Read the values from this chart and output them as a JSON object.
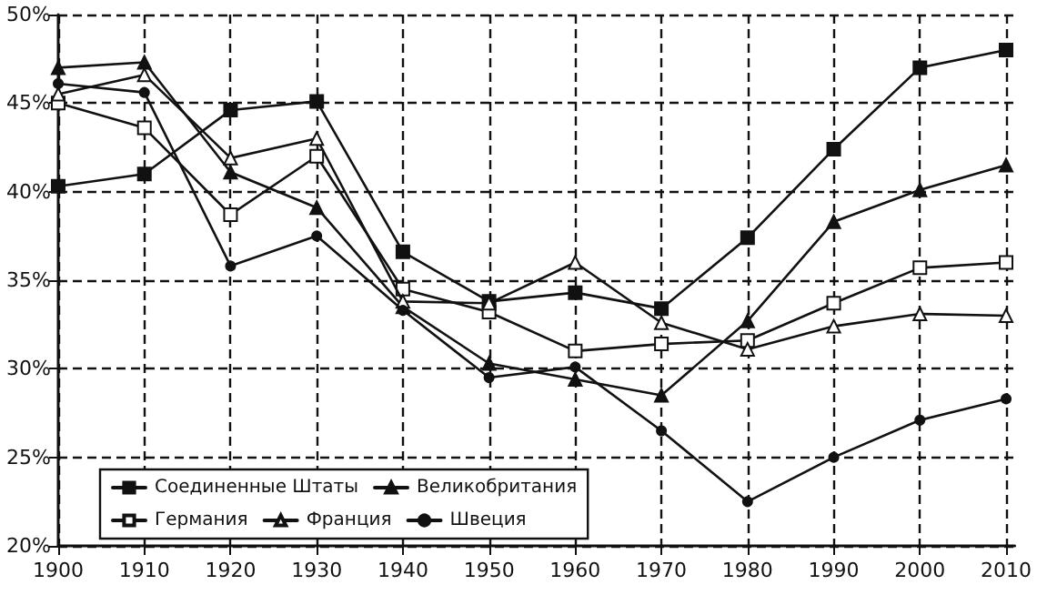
{
  "chart_data": {
    "type": "line",
    "x": [
      1900,
      1910,
      1920,
      1930,
      1940,
      1950,
      1960,
      1970,
      1980,
      1990,
      2000,
      2010
    ],
    "series": [
      {
        "name": "Соединенные Штаты",
        "color": "#111111",
        "marker": "square",
        "values": [
          40.3,
          41.0,
          44.6,
          45.1,
          36.6,
          33.8,
          34.3,
          33.4,
          37.4,
          42.4,
          47.0,
          48.0
        ]
      },
      {
        "name": "Великобритания",
        "color": "#111111",
        "marker": "triangle",
        "values": [
          47.0,
          47.3,
          41.1,
          39.1,
          33.5,
          30.3,
          29.4,
          28.5,
          32.7,
          38.3,
          40.1,
          41.5
        ]
      },
      {
        "name": "Германия",
        "color": "#ffffff",
        "marker": "square",
        "values": [
          45.0,
          43.6,
          38.7,
          42.0,
          34.5,
          33.2,
          31.0,
          31.4,
          31.6,
          33.7,
          35.7,
          36.0
        ]
      },
      {
        "name": "Франция",
        "color": "#ffffff",
        "marker": "triangle",
        "values": [
          45.5,
          46.6,
          41.9,
          43.0,
          33.8,
          33.7,
          36.0,
          32.6,
          31.1,
          32.4,
          33.1,
          33.0
        ]
      },
      {
        "name": "Швеция",
        "color": "#111111",
        "marker": "circle",
        "values": [
          46.1,
          45.6,
          35.8,
          37.5,
          33.3,
          29.5,
          30.1,
          26.5,
          22.5,
          25.0,
          27.1,
          28.3
        ]
      }
    ],
    "xlim": [
      1900,
      2011
    ],
    "xticks": [
      1900,
      1910,
      1920,
      1930,
      1940,
      1950,
      1960,
      1970,
      1980,
      1990,
      2000,
      2010
    ],
    "ylim": [
      20,
      50
    ],
    "yticks": [
      {
        "value": 20,
        "label": "20%"
      },
      {
        "value": 25,
        "label": "25%"
      },
      {
        "value": 30,
        "label": "30%"
      },
      {
        "value": 35,
        "label": "35%"
      },
      {
        "value": 40,
        "label": "40%"
      },
      {
        "value": 45,
        "label": "45%"
      },
      {
        "value": 50,
        "label": "50%"
      }
    ],
    "grid": true,
    "legend": "bottom left",
    "line_style": "solid"
  }
}
